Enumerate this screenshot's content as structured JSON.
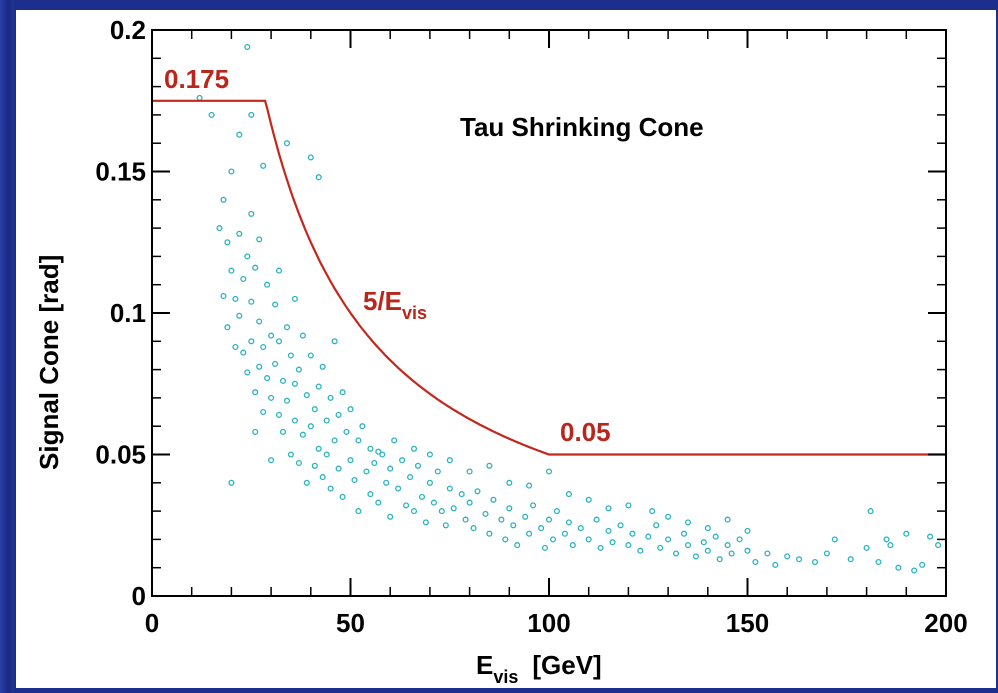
{
  "colors": {
    "background": "#1c2f8c",
    "curve": "#c4271c",
    "points": "#2bb3c0",
    "frame": "#000000"
  },
  "chart_data": {
    "type": "scatter",
    "title": "Tau Shrinking Cone",
    "xlabel": "E",
    "xlabel_sub": "vis",
    "xlabel_unit": "[GeV]",
    "ylabel": "Signal Cone  [rad]",
    "xlim": [
      0,
      200
    ],
    "ylim": [
      0,
      0.2
    ],
    "x_ticks": [
      "0",
      "50",
      "100",
      "150",
      "200"
    ],
    "y_ticks": [
      "0",
      "0.05",
      "0.1",
      "0.15",
      "0.2"
    ],
    "grid": false,
    "cone_curve": {
      "description_label_main": "5/E",
      "description_label_sub": "vis",
      "max_label": "0.175",
      "min_label": "0.05",
      "max_value": 0.175,
      "min_value": 0.05,
      "numerator": 5,
      "x_start": 0,
      "x_end": 200
    },
    "sampled_points": [
      [
        12,
        0.176
      ],
      [
        15,
        0.17
      ],
      [
        17,
        0.13
      ],
      [
        18,
        0.14
      ],
      [
        18,
        0.106
      ],
      [
        19,
        0.125
      ],
      [
        19,
        0.095
      ],
      [
        20,
        0.15
      ],
      [
        20,
        0.115
      ],
      [
        20,
        0.04
      ],
      [
        21,
        0.105
      ],
      [
        21,
        0.088
      ],
      [
        22,
        0.163
      ],
      [
        22,
        0.128
      ],
      [
        22,
        0.099
      ],
      [
        23,
        0.112
      ],
      [
        23,
        0.086
      ],
      [
        24,
        0.194
      ],
      [
        24,
        0.12
      ],
      [
        24,
        0.079
      ],
      [
        25,
        0.17
      ],
      [
        25,
        0.135
      ],
      [
        25,
        0.104
      ],
      [
        25,
        0.09
      ],
      [
        26,
        0.116
      ],
      [
        26,
        0.072
      ],
      [
        26,
        0.058
      ],
      [
        27,
        0.126
      ],
      [
        27,
        0.097
      ],
      [
        27,
        0.081
      ],
      [
        28,
        0.152
      ],
      [
        28,
        0.088
      ],
      [
        28,
        0.065
      ],
      [
        29,
        0.11
      ],
      [
        29,
        0.077
      ],
      [
        30,
        0.092
      ],
      [
        30,
        0.07
      ],
      [
        30,
        0.048
      ],
      [
        31,
        0.103
      ],
      [
        31,
        0.082
      ],
      [
        32,
        0.115
      ],
      [
        32,
        0.064
      ],
      [
        32,
        0.09
      ],
      [
        33,
        0.076
      ],
      [
        33,
        0.058
      ],
      [
        34,
        0.16
      ],
      [
        34,
        0.095
      ],
      [
        34,
        0.069
      ],
      [
        35,
        0.085
      ],
      [
        35,
        0.05
      ],
      [
        36,
        0.105
      ],
      [
        36,
        0.062
      ],
      [
        36,
        0.075
      ],
      [
        37,
        0.08
      ],
      [
        37,
        0.047
      ],
      [
        38,
        0.092
      ],
      [
        38,
        0.057
      ],
      [
        39,
        0.071
      ],
      [
        39,
        0.04
      ],
      [
        40,
        0.155
      ],
      [
        40,
        0.085
      ],
      [
        40,
        0.06
      ],
      [
        41,
        0.066
      ],
      [
        41,
        0.046
      ],
      [
        42,
        0.148
      ],
      [
        42,
        0.074
      ],
      [
        42,
        0.052
      ],
      [
        43,
        0.081
      ],
      [
        43,
        0.042
      ],
      [
        44,
        0.062
      ],
      [
        44,
        0.05
      ],
      [
        45,
        0.07
      ],
      [
        45,
        0.038
      ],
      [
        46,
        0.09
      ],
      [
        46,
        0.055
      ],
      [
        47,
        0.064
      ],
      [
        47,
        0.045
      ],
      [
        48,
        0.072
      ],
      [
        48,
        0.035
      ],
      [
        49,
        0.058
      ],
      [
        50,
        0.048
      ],
      [
        50,
        0.066
      ],
      [
        51,
        0.041
      ],
      [
        52,
        0.055
      ],
      [
        52,
        0.03
      ],
      [
        53,
        0.06
      ],
      [
        54,
        0.044
      ],
      [
        55,
        0.052
      ],
      [
        55,
        0.036
      ],
      [
        56,
        0.047
      ],
      [
        57,
        0.033
      ],
      [
        58,
        0.05
      ],
      [
        59,
        0.04
      ],
      [
        60,
        0.045
      ],
      [
        60,
        0.028
      ],
      [
        62,
        0.038
      ],
      [
        63,
        0.048
      ],
      [
        64,
        0.032
      ],
      [
        65,
        0.042
      ],
      [
        66,
        0.03
      ],
      [
        67,
        0.046
      ],
      [
        68,
        0.035
      ],
      [
        69,
        0.026
      ],
      [
        70,
        0.04
      ],
      [
        71,
        0.033
      ],
      [
        72,
        0.044
      ],
      [
        73,
        0.03
      ],
      [
        74,
        0.025
      ],
      [
        75,
        0.038
      ],
      [
        76,
        0.031
      ],
      [
        78,
        0.036
      ],
      [
        79,
        0.027
      ],
      [
        80,
        0.033
      ],
      [
        81,
        0.024
      ],
      [
        82,
        0.037
      ],
      [
        84,
        0.029
      ],
      [
        85,
        0.022
      ],
      [
        86,
        0.034
      ],
      [
        88,
        0.027
      ],
      [
        89,
        0.02
      ],
      [
        90,
        0.031
      ],
      [
        91,
        0.025
      ],
      [
        92,
        0.018
      ],
      [
        94,
        0.028
      ],
      [
        95,
        0.022
      ],
      [
        96,
        0.032
      ],
      [
        98,
        0.024
      ],
      [
        99,
        0.017
      ],
      [
        100,
        0.027
      ],
      [
        101,
        0.02
      ],
      [
        102,
        0.03
      ],
      [
        104,
        0.022
      ],
      [
        105,
        0.026
      ],
      [
        106,
        0.018
      ],
      [
        108,
        0.024
      ],
      [
        110,
        0.02
      ],
      [
        112,
        0.027
      ],
      [
        113,
        0.017
      ],
      [
        115,
        0.023
      ],
      [
        116,
        0.019
      ],
      [
        118,
        0.025
      ],
      [
        120,
        0.018
      ],
      [
        121,
        0.022
      ],
      [
        123,
        0.016
      ],
      [
        125,
        0.021
      ],
      [
        127,
        0.025
      ],
      [
        128,
        0.017
      ],
      [
        130,
        0.02
      ],
      [
        132,
        0.015
      ],
      [
        134,
        0.022
      ],
      [
        135,
        0.018
      ],
      [
        137,
        0.014
      ],
      [
        139,
        0.019
      ],
      [
        140,
        0.016
      ],
      [
        142,
        0.021
      ],
      [
        143,
        0.013
      ],
      [
        145,
        0.018
      ],
      [
        146,
        0.015
      ],
      [
        148,
        0.02
      ],
      [
        150,
        0.016
      ],
      [
        152,
        0.012
      ],
      [
        155,
        0.015
      ],
      [
        157,
        0.011
      ],
      [
        160,
        0.014
      ],
      [
        163,
        0.013
      ],
      [
        167,
        0.012
      ],
      [
        170,
        0.015
      ],
      [
        172,
        0.02
      ],
      [
        176,
        0.013
      ],
      [
        180,
        0.017
      ],
      [
        181,
        0.03
      ],
      [
        183,
        0.012
      ],
      [
        185,
        0.02
      ],
      [
        186,
        0.018
      ],
      [
        188,
        0.01
      ],
      [
        190,
        0.022
      ],
      [
        192,
        0.009
      ],
      [
        194,
        0.011
      ],
      [
        196,
        0.021
      ],
      [
        198,
        0.018
      ],
      [
        57,
        0.051
      ],
      [
        61,
        0.055
      ],
      [
        66,
        0.052
      ],
      [
        70,
        0.05
      ],
      [
        75,
        0.048
      ],
      [
        80,
        0.044
      ],
      [
        85,
        0.046
      ],
      [
        90,
        0.04
      ],
      [
        95,
        0.039
      ],
      [
        100,
        0.044
      ],
      [
        105,
        0.036
      ],
      [
        110,
        0.034
      ],
      [
        115,
        0.031
      ],
      [
        120,
        0.032
      ],
      [
        126,
        0.03
      ],
      [
        130,
        0.028
      ],
      [
        135,
        0.026
      ],
      [
        140,
        0.024
      ],
      [
        145,
        0.027
      ],
      [
        150,
        0.023
      ]
    ]
  }
}
